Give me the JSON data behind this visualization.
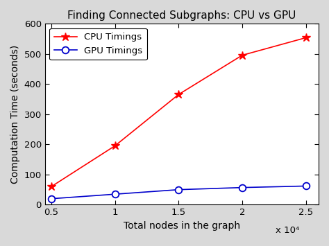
{
  "title": "Finding Connected Subgraphs: CPU vs GPU",
  "xlabel": "Total nodes in the graph",
  "ylabel": "Computation Time (seconds)",
  "x_values": [
    5000,
    10000,
    15000,
    20000,
    25000
  ],
  "cpu_values": [
    60,
    195,
    365,
    495,
    553
  ],
  "gpu_values": [
    20,
    35,
    50,
    57,
    62
  ],
  "cpu_color": "#ff0000",
  "gpu_color": "#0000cc",
  "cpu_label": "CPU Timings",
  "gpu_label": "GPU Timings",
  "cpu_marker": "*",
  "gpu_marker": "o",
  "xlim": [
    4500,
    26000
  ],
  "ylim": [
    0,
    600
  ],
  "xticks": [
    5000,
    10000,
    15000,
    20000,
    25000
  ],
  "xtick_labels": [
    "0.5",
    "1",
    "1.5",
    "2",
    "2.5"
  ],
  "yticks": [
    0,
    100,
    200,
    300,
    400,
    500,
    600
  ],
  "x_scale_label": "x 10⁴",
  "title_fontsize": 11,
  "label_fontsize": 10,
  "tick_fontsize": 9.5,
  "legend_fontsize": 9.5,
  "linewidth": 1.2,
  "markersize_cpu": 9,
  "markersize_gpu": 7,
  "bg_color": "#ffffff",
  "fig_bg_color": "#d9d9d9"
}
